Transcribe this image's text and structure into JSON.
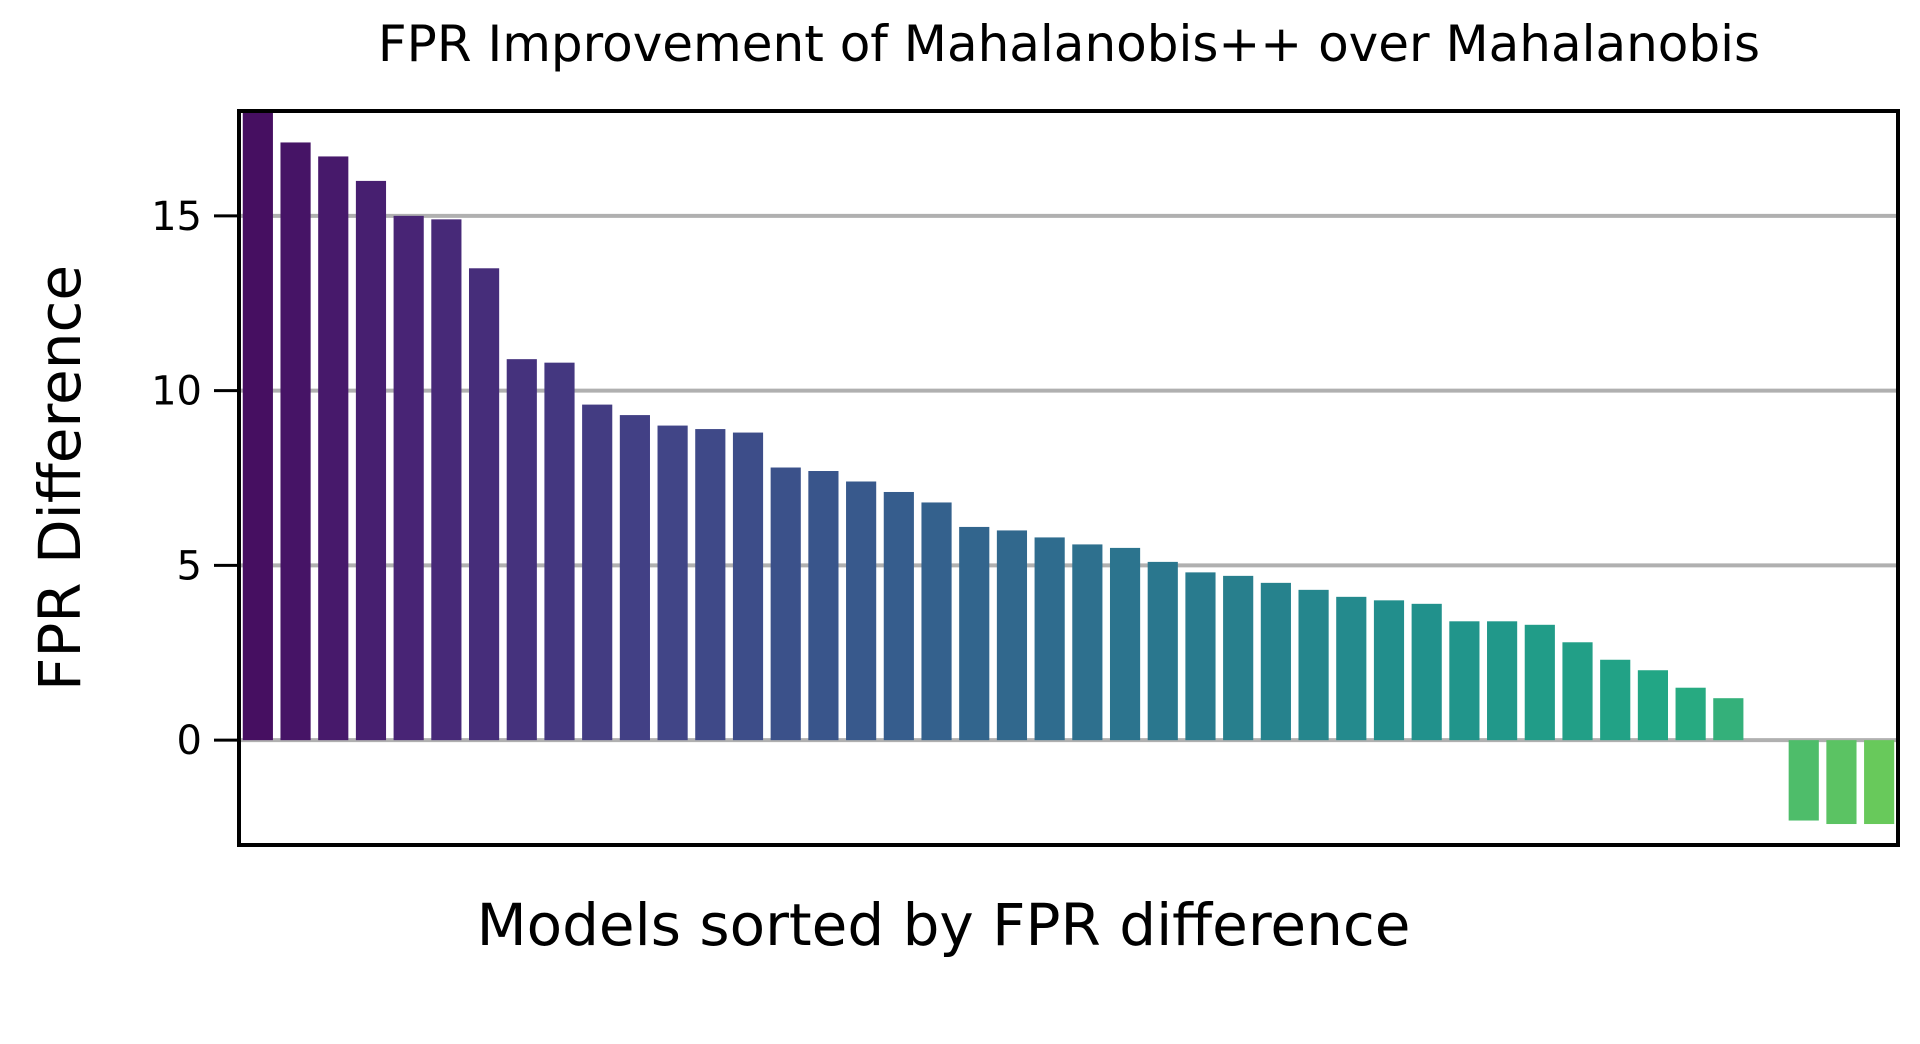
{
  "chart_data": {
    "type": "bar",
    "title": "FPR Improvement of Mahalanobis++ over Mahalanobis",
    "xlabel": "Models sorted by FPR difference",
    "ylabel": "FPR Difference",
    "ylim": [
      -3,
      18
    ],
    "yticks": [
      0,
      5,
      10,
      15
    ],
    "ytick_labels": [
      "0",
      "5",
      "10",
      "15"
    ],
    "grid": "horizontal",
    "colormap": "viridis",
    "gridline_color": "#b0b0b0",
    "values": [
      18.0,
      17.1,
      16.7,
      16.0,
      15.0,
      14.9,
      13.5,
      10.9,
      10.8,
      9.6,
      9.3,
      9.0,
      8.9,
      8.8,
      7.8,
      7.7,
      7.4,
      7.1,
      6.8,
      6.1,
      6.0,
      5.8,
      5.6,
      5.5,
      5.1,
      4.8,
      4.7,
      4.5,
      4.3,
      4.1,
      4.0,
      3.9,
      3.4,
      3.4,
      3.3,
      2.8,
      2.3,
      2.0,
      1.5,
      1.2,
      0.0,
      -2.3,
      -2.4,
      -2.4
    ]
  }
}
